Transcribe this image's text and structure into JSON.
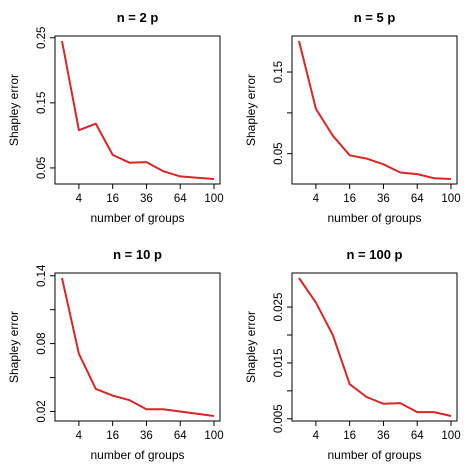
{
  "chart_data": [
    {
      "type": "line",
      "title": "n = 2 p",
      "xlabel": "number of groups",
      "ylabel": "Shapley error",
      "x": [
        1,
        4,
        9,
        16,
        25,
        36,
        49,
        64,
        81,
        100
      ],
      "y": [
        0.245,
        0.108,
        0.118,
        0.07,
        0.058,
        0.059,
        0.045,
        0.037,
        0.035,
        0.033
      ],
      "xticks": [
        4,
        16,
        36,
        64,
        100
      ],
      "xtick_labels": [
        "4",
        "16",
        "36",
        "64",
        "100"
      ],
      "yticks": [
        0.05,
        0.15,
        0.25
      ],
      "ytick_labels": [
        "0.05",
        "0.15",
        "0.25"
      ],
      "ylim": [
        0.033,
        0.245
      ],
      "x_scale": "sqrt",
      "line_color": "#d62728"
    },
    {
      "type": "line",
      "title": "n = 5 p",
      "xlabel": "number of groups",
      "ylabel": "Shapley error",
      "x": [
        1,
        4,
        9,
        16,
        25,
        36,
        49,
        64,
        81,
        100
      ],
      "y": [
        0.188,
        0.105,
        0.072,
        0.048,
        0.044,
        0.037,
        0.027,
        0.025,
        0.02,
        0.019
      ],
      "xticks": [
        4,
        16,
        36,
        64,
        100
      ],
      "xtick_labels": [
        "4",
        "16",
        "36",
        "64",
        "100"
      ],
      "yticks": [
        0.05,
        0.1,
        0.15
      ],
      "ytick_labels": [
        "0.05",
        "",
        "0.15"
      ],
      "ylim": [
        0.019,
        0.188
      ],
      "x_scale": "sqrt",
      "line_color": "#d62728"
    },
    {
      "type": "line",
      "title": "n = 10 p",
      "xlabel": "number of groups",
      "ylabel": "Shapley error",
      "x": [
        1,
        4,
        9,
        16,
        25,
        36,
        49,
        64,
        81,
        100
      ],
      "y": [
        0.138,
        0.071,
        0.04,
        0.034,
        0.03,
        0.022,
        0.022,
        0.02,
        0.018,
        0.016
      ],
      "xticks": [
        4,
        16,
        36,
        64,
        100
      ],
      "xtick_labels": [
        "4",
        "16",
        "36",
        "64",
        "100"
      ],
      "yticks": [
        0.02,
        0.05,
        0.08,
        0.11,
        0.14
      ],
      "ytick_labels": [
        "0.02",
        "",
        "0.08",
        "",
        "0.14"
      ],
      "ylim": [
        0.016,
        0.138
      ],
      "x_scale": "sqrt",
      "line_color": "#d62728"
    },
    {
      "type": "line",
      "title": "n = 100 p",
      "xlabel": "number of groups",
      "ylabel": "Shapley error",
      "x": [
        1,
        4,
        9,
        16,
        25,
        36,
        49,
        64,
        81,
        100
      ],
      "y": [
        0.0302,
        0.0258,
        0.02,
        0.0112,
        0.0089,
        0.0077,
        0.0078,
        0.0062,
        0.0062,
        0.0055
      ],
      "xticks": [
        4,
        16,
        36,
        64,
        100
      ],
      "xtick_labels": [
        "4",
        "16",
        "36",
        "64",
        "100"
      ],
      "yticks": [
        0.005,
        0.01,
        0.015,
        0.02,
        0.025
      ],
      "ytick_labels": [
        "0.005",
        "",
        "0.015",
        "",
        "0.025"
      ],
      "ylim": [
        0.0055,
        0.0302
      ],
      "x_scale": "sqrt",
      "line_color": "#d62728"
    }
  ]
}
